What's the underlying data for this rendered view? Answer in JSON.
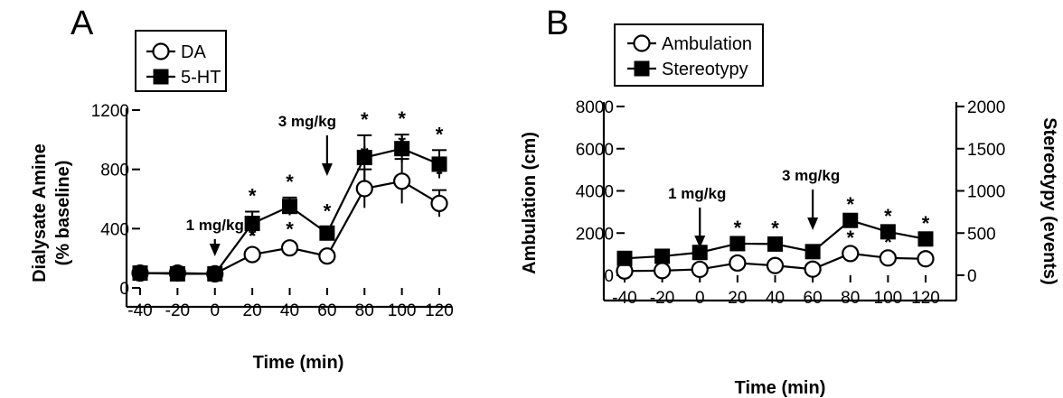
{
  "chart_data": [
    {
      "panel": "A",
      "type": "line",
      "xlabel": "Time (min)",
      "ylabel": "Dialysate Amine",
      "ylabel2": "(% baseline)",
      "xlim": [
        -40,
        120
      ],
      "ylim": [
        0,
        1200
      ],
      "xticks": [
        "-40",
        "-20",
        "0",
        "20",
        "40",
        "60",
        "80",
        "100",
        "120"
      ],
      "yticks": [
        "0",
        "400",
        "800",
        "1200"
      ],
      "x": [
        -40,
        -20,
        0,
        20,
        40,
        60,
        80,
        100,
        120
      ],
      "series": [
        {
          "name": "DA",
          "marker": "open-circle",
          "values": [
            100,
            100,
            95,
            225,
            270,
            215,
            670,
            720,
            570
          ],
          "err": [
            0,
            0,
            0,
            20,
            20,
            20,
            130,
            150,
            90
          ],
          "sig": [
            false,
            false,
            false,
            true,
            true,
            false,
            true,
            true,
            true
          ]
        },
        {
          "name": "5-HT",
          "marker": "filled-square",
          "values": [
            100,
            95,
            95,
            435,
            550,
            370,
            880,
            940,
            835
          ],
          "err": [
            15,
            15,
            15,
            80,
            60,
            40,
            150,
            95,
            95
          ],
          "sig": [
            false,
            false,
            false,
            true,
            true,
            true,
            true,
            true,
            true
          ]
        }
      ],
      "annotations": [
        {
          "text": "1 mg/kg",
          "x": 0
        },
        {
          "text": "3 mg/kg",
          "x": 60
        }
      ],
      "legend": "top-left"
    },
    {
      "panel": "B",
      "type": "line",
      "xlabel": "Time (min)",
      "ylabel": "Ambulation (cm)",
      "ylabel_right": "Stereotypy (events)",
      "xlim": [
        -40,
        120
      ],
      "ylim": [
        0,
        8000
      ],
      "ylim_right": [
        0,
        2000
      ],
      "xticks": [
        "-40",
        "-20",
        "0",
        "20",
        "40",
        "60",
        "80",
        "100",
        "120"
      ],
      "yticks": [
        "0",
        "2000",
        "4000",
        "6000",
        "8000"
      ],
      "yticks_right": [
        "0",
        "500",
        "1000",
        "1500",
        "2000"
      ],
      "x": [
        -40,
        -20,
        0,
        20,
        40,
        60,
        80,
        100,
        120
      ],
      "series": [
        {
          "name": "Ambulation",
          "marker": "open-circle",
          "axis": "left",
          "values": [
            200,
            220,
            280,
            580,
            460,
            290,
            1030,
            820,
            780
          ],
          "sig": [
            false,
            false,
            false,
            false,
            false,
            false,
            true,
            true,
            false
          ]
        },
        {
          "name": "Stereotypy",
          "marker": "filled-square",
          "axis": "right",
          "values": [
            200,
            225,
            270,
            375,
            370,
            280,
            650,
            515,
            430
          ],
          "sig": [
            false,
            false,
            false,
            true,
            true,
            false,
            true,
            true,
            true
          ]
        }
      ],
      "annotations": [
        {
          "text": "1 mg/kg",
          "x": 0
        },
        {
          "text": "3 mg/kg",
          "x": 60
        }
      ],
      "legend": "top-left"
    }
  ]
}
